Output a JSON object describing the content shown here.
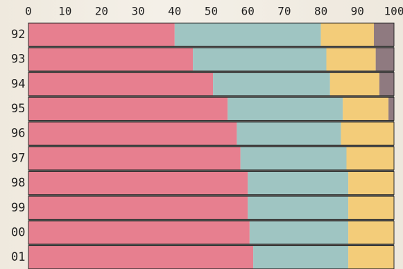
{
  "chart_data": {
    "type": "bar",
    "orientation": "horizontal",
    "stacked": true,
    "title": "",
    "xlabel": "",
    "ylabel": "",
    "xlim": [
      0,
      100
    ],
    "x_ticks": [
      "0",
      "10",
      "20",
      "30",
      "40",
      "50",
      "60",
      "70",
      "80",
      "90",
      "100"
    ],
    "x_axis_position": "top",
    "grid": false,
    "legend": "none",
    "categories": [
      "92",
      "93",
      "94",
      "95",
      "96",
      "97",
      "98",
      "99",
      "00",
      "01"
    ],
    "series": [
      {
        "color": "#e77f8f",
        "values": [
          40,
          45,
          50.5,
          54.5,
          57,
          58,
          60,
          60,
          60.5,
          61.5
        ]
      },
      {
        "color": "#9fc5c2",
        "values": [
          40,
          36.5,
          32,
          31.5,
          28.5,
          29,
          27.5,
          27.5,
          27,
          26
        ]
      },
      {
        "color": "#f3cc79",
        "values": [
          14.5,
          13.5,
          13.5,
          12.5,
          14.5,
          13,
          12.5,
          12.5,
          12.5,
          12.5
        ]
      },
      {
        "color": "#8f7a80",
        "values": [
          5.5,
          5,
          4,
          1.5,
          0,
          0,
          0,
          0,
          0,
          0
        ]
      }
    ]
  }
}
